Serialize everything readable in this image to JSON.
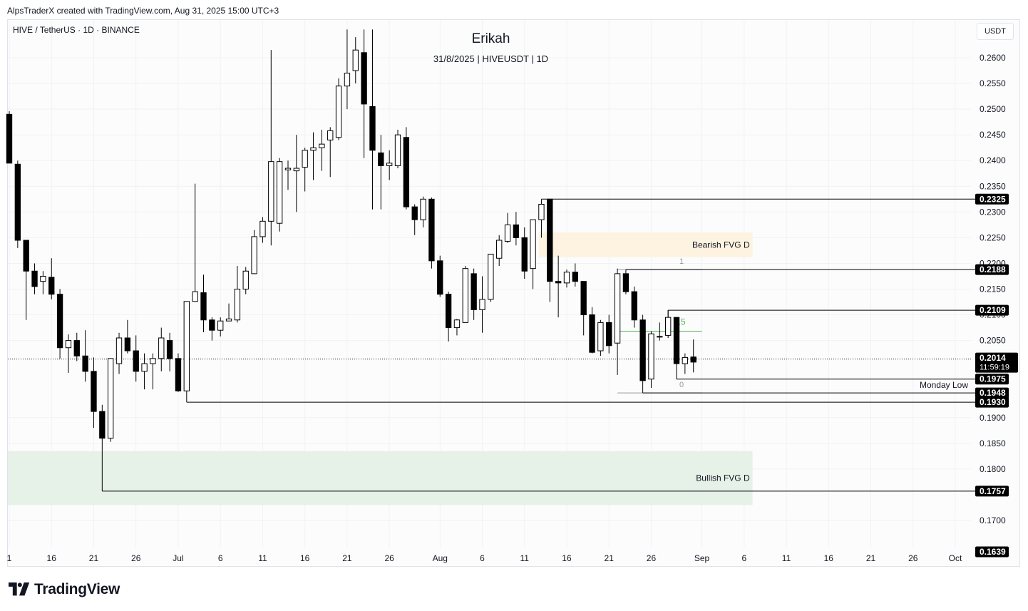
{
  "header": {
    "credit": "AlpsTraderX created with TradingView.com, Aug 31, 2025 15:00 UTC+3"
  },
  "symbol_line": "HIVE / TetherUS · 1D · BINANCE",
  "title": "Erikah",
  "subtitle": "31/8/2025 | HIVEUSDT | 1D",
  "currency_button": "USDT",
  "branding": {
    "logo_text": "TradingView",
    "logo_icon": "tradingview-logo-icon"
  },
  "colors": {
    "bullish_candle": "#ffffff",
    "bearish_candle": "#000000",
    "candle_border": "#000000",
    "bearish_fvg_zone": "#fdf3e0",
    "bullish_fvg_zone": "#e6f1e7",
    "fib_mid_line": "#4caf50",
    "level_line": "#000000",
    "price_label_bg": "#000000"
  },
  "chart_data": {
    "type": "candlestick",
    "interval": "1D",
    "y_axis": {
      "side": "right",
      "ticks": [
        0.26,
        0.255,
        0.25,
        0.245,
        0.24,
        0.235,
        0.23,
        0.225,
        0.22,
        0.215,
        0.21,
        0.205,
        0.19,
        0.185,
        0.18,
        0.17
      ],
      "tick_labels": [
        "0.2600",
        "0.2550",
        "0.2500",
        "0.2450",
        "0.2400",
        "0.2350",
        "0.2300",
        "0.2250",
        "0.2200",
        "0.2150",
        "0.2100",
        "0.2050",
        "0.1900",
        "0.1850",
        "0.1800",
        "0.1700"
      ],
      "range": [
        0.1625,
        0.2655
      ]
    },
    "x_axis": {
      "tick_labels": [
        "1",
        "16",
        "21",
        "26",
        "Jul",
        "6",
        "11",
        "16",
        "21",
        "26",
        "Aug",
        "6",
        "11",
        "16",
        "21",
        "26",
        "Sep",
        "6",
        "11",
        "16",
        "21",
        "26",
        "Oct"
      ],
      "tick_dates": [
        "2025-06-11",
        "2025-06-16",
        "2025-06-21",
        "2025-06-26",
        "2025-07-01",
        "2025-07-06",
        "2025-07-11",
        "2025-07-16",
        "2025-07-21",
        "2025-07-26",
        "2025-08-01",
        "2025-08-06",
        "2025-08-11",
        "2025-08-16",
        "2025-08-21",
        "2025-08-26",
        "2025-09-01",
        "2025-09-06",
        "2025-09-11",
        "2025-09-16",
        "2025-09-21",
        "2025-09-26",
        "2025-10-01"
      ],
      "range": [
        "2025-06-11",
        "2025-10-01"
      ]
    },
    "candles": [
      {
        "date": "2025-06-11",
        "o": 0.249,
        "h": 0.2496,
        "l": 0.2395,
        "c": 0.2395
      },
      {
        "date": "2025-06-12",
        "o": 0.2393,
        "h": 0.24,
        "l": 0.223,
        "c": 0.2245
      },
      {
        "date": "2025-06-13",
        "o": 0.2245,
        "h": 0.2245,
        "l": 0.209,
        "c": 0.2185
      },
      {
        "date": "2025-06-14",
        "o": 0.2185,
        "h": 0.22,
        "l": 0.214,
        "c": 0.2155
      },
      {
        "date": "2025-06-15",
        "o": 0.2165,
        "h": 0.2185,
        "l": 0.214,
        "c": 0.2175
      },
      {
        "date": "2025-06-16",
        "o": 0.2173,
        "h": 0.221,
        "l": 0.213,
        "c": 0.214
      },
      {
        "date": "2025-06-17",
        "o": 0.214,
        "h": 0.215,
        "l": 0.2015,
        "c": 0.2036
      },
      {
        "date": "2025-06-18",
        "o": 0.2036,
        "h": 0.2062,
        "l": 0.1987,
        "c": 0.205
      },
      {
        "date": "2025-06-19",
        "o": 0.205,
        "h": 0.2065,
        "l": 0.201,
        "c": 0.202
      },
      {
        "date": "2025-06-20",
        "o": 0.202,
        "h": 0.207,
        "l": 0.197,
        "c": 0.199
      },
      {
        "date": "2025-06-21",
        "o": 0.199,
        "h": 0.2017,
        "l": 0.188,
        "c": 0.1912
      },
      {
        "date": "2025-06-22",
        "o": 0.1912,
        "h": 0.1925,
        "l": 0.186,
        "c": 0.186
      },
      {
        "date": "2025-06-23",
        "o": 0.186,
        "h": 0.2015,
        "l": 0.1853,
        "c": 0.2015
      },
      {
        "date": "2025-06-24",
        "o": 0.2005,
        "h": 0.2065,
        "l": 0.1985,
        "c": 0.2055
      },
      {
        "date": "2025-06-25",
        "o": 0.2055,
        "h": 0.209,
        "l": 0.2025,
        "c": 0.203
      },
      {
        "date": "2025-06-26",
        "o": 0.203,
        "h": 0.206,
        "l": 0.197,
        "c": 0.199
      },
      {
        "date": "2025-06-27",
        "o": 0.199,
        "h": 0.2025,
        "l": 0.1955,
        "c": 0.2005
      },
      {
        "date": "2025-06-28",
        "o": 0.2005,
        "h": 0.2025,
        "l": 0.1955,
        "c": 0.2015
      },
      {
        "date": "2025-06-29",
        "o": 0.2015,
        "h": 0.2075,
        "l": 0.199,
        "c": 0.2055
      },
      {
        "date": "2025-06-30",
        "o": 0.205,
        "h": 0.2065,
        "l": 0.199,
        "c": 0.2015
      },
      {
        "date": "2025-07-01",
        "o": 0.2015,
        "h": 0.2025,
        "l": 0.195,
        "c": 0.1952
      },
      {
        "date": "2025-07-02",
        "o": 0.1952,
        "h": 0.2126,
        "l": 0.195,
        "c": 0.2126
      },
      {
        "date": "2025-07-03",
        "o": 0.2126,
        "h": 0.2355,
        "l": 0.2126,
        "c": 0.2145
      },
      {
        "date": "2025-07-04",
        "o": 0.2143,
        "h": 0.2178,
        "l": 0.2066,
        "c": 0.209
      },
      {
        "date": "2025-07-05",
        "o": 0.209,
        "h": 0.2095,
        "l": 0.205,
        "c": 0.207
      },
      {
        "date": "2025-07-06",
        "o": 0.207,
        "h": 0.2095,
        "l": 0.2058,
        "c": 0.2088
      },
      {
        "date": "2025-07-07",
        "o": 0.2088,
        "h": 0.2122,
        "l": 0.2088,
        "c": 0.2092
      },
      {
        "date": "2025-07-08",
        "o": 0.209,
        "h": 0.2195,
        "l": 0.2085,
        "c": 0.215
      },
      {
        "date": "2025-07-09",
        "o": 0.215,
        "h": 0.2193,
        "l": 0.214,
        "c": 0.2185
      },
      {
        "date": "2025-07-10",
        "o": 0.218,
        "h": 0.2265,
        "l": 0.218,
        "c": 0.2252
      },
      {
        "date": "2025-07-11",
        "o": 0.2252,
        "h": 0.229,
        "l": 0.224,
        "c": 0.2282
      },
      {
        "date": "2025-07-12",
        "o": 0.2282,
        "h": 0.2615,
        "l": 0.2235,
        "c": 0.2398
      },
      {
        "date": "2025-07-13",
        "o": 0.2278,
        "h": 0.2405,
        "l": 0.2262,
        "c": 0.2398
      },
      {
        "date": "2025-07-14",
        "o": 0.2382,
        "h": 0.24,
        "l": 0.2343,
        "c": 0.2385
      },
      {
        "date": "2025-07-15",
        "o": 0.238,
        "h": 0.245,
        "l": 0.23,
        "c": 0.2385
      },
      {
        "date": "2025-07-16",
        "o": 0.2387,
        "h": 0.2425,
        "l": 0.234,
        "c": 0.242
      },
      {
        "date": "2025-07-17",
        "o": 0.242,
        "h": 0.2455,
        "l": 0.2362,
        "c": 0.2425
      },
      {
        "date": "2025-07-18",
        "o": 0.2425,
        "h": 0.246,
        "l": 0.238,
        "c": 0.2432
      },
      {
        "date": "2025-07-19",
        "o": 0.244,
        "h": 0.2465,
        "l": 0.2368,
        "c": 0.2458
      },
      {
        "date": "2025-07-20",
        "o": 0.2445,
        "h": 0.256,
        "l": 0.244,
        "c": 0.2545
      },
      {
        "date": "2025-07-21",
        "o": 0.2545,
        "h": 0.2655,
        "l": 0.25,
        "c": 0.257
      },
      {
        "date": "2025-07-22",
        "o": 0.2575,
        "h": 0.264,
        "l": 0.255,
        "c": 0.2615
      },
      {
        "date": "2025-07-23",
        "o": 0.261,
        "h": 0.2655,
        "l": 0.2405,
        "c": 0.251
      },
      {
        "date": "2025-07-24",
        "o": 0.2505,
        "h": 0.2655,
        "l": 0.2305,
        "c": 0.242
      },
      {
        "date": "2025-07-25",
        "o": 0.2415,
        "h": 0.245,
        "l": 0.2305,
        "c": 0.239
      },
      {
        "date": "2025-07-26",
        "o": 0.239,
        "h": 0.242,
        "l": 0.2362,
        "c": 0.2395
      },
      {
        "date": "2025-07-27",
        "o": 0.239,
        "h": 0.246,
        "l": 0.2385,
        "c": 0.245
      },
      {
        "date": "2025-07-28",
        "o": 0.2445,
        "h": 0.2465,
        "l": 0.2305,
        "c": 0.231
      },
      {
        "date": "2025-07-29",
        "o": 0.231,
        "h": 0.2315,
        "l": 0.2255,
        "c": 0.2285
      },
      {
        "date": "2025-07-30",
        "o": 0.2285,
        "h": 0.233,
        "l": 0.227,
        "c": 0.2325
      },
      {
        "date": "2025-07-31",
        "o": 0.2325,
        "h": 0.2328,
        "l": 0.219,
        "c": 0.2205
      },
      {
        "date": "2025-08-01",
        "o": 0.2205,
        "h": 0.2215,
        "l": 0.2135,
        "c": 0.214
      },
      {
        "date": "2025-08-02",
        "o": 0.214,
        "h": 0.2145,
        "l": 0.2048,
        "c": 0.2075
      },
      {
        "date": "2025-08-03",
        "o": 0.2075,
        "h": 0.2092,
        "l": 0.206,
        "c": 0.209
      },
      {
        "date": "2025-08-04",
        "o": 0.2085,
        "h": 0.2195,
        "l": 0.2085,
        "c": 0.219
      },
      {
        "date": "2025-08-05",
        "o": 0.218,
        "h": 0.219,
        "l": 0.209,
        "c": 0.211
      },
      {
        "date": "2025-08-06",
        "o": 0.211,
        "h": 0.2175,
        "l": 0.2065,
        "c": 0.213
      },
      {
        "date": "2025-08-07",
        "o": 0.213,
        "h": 0.2218,
        "l": 0.2125,
        "c": 0.2218
      },
      {
        "date": "2025-08-08",
        "o": 0.221,
        "h": 0.2255,
        "l": 0.2195,
        "c": 0.2245
      },
      {
        "date": "2025-08-09",
        "o": 0.2243,
        "h": 0.2298,
        "l": 0.224,
        "c": 0.2275
      },
      {
        "date": "2025-08-10",
        "o": 0.2275,
        "h": 0.23,
        "l": 0.2235,
        "c": 0.225
      },
      {
        "date": "2025-08-11",
        "o": 0.225,
        "h": 0.227,
        "l": 0.217,
        "c": 0.2185
      },
      {
        "date": "2025-08-12",
        "o": 0.219,
        "h": 0.2285,
        "l": 0.215,
        "c": 0.2285
      },
      {
        "date": "2025-08-13",
        "o": 0.2285,
        "h": 0.2325,
        "l": 0.225,
        "c": 0.2315
      },
      {
        "date": "2025-08-14",
        "o": 0.2325,
        "h": 0.2325,
        "l": 0.2125,
        "c": 0.2165
      },
      {
        "date": "2025-08-15",
        "o": 0.2165,
        "h": 0.2215,
        "l": 0.2095,
        "c": 0.2162
      },
      {
        "date": "2025-08-16",
        "o": 0.2162,
        "h": 0.2188,
        "l": 0.2153,
        "c": 0.2183
      },
      {
        "date": "2025-08-17",
        "o": 0.2183,
        "h": 0.22,
        "l": 0.2155,
        "c": 0.2165
      },
      {
        "date": "2025-08-18",
        "o": 0.2165,
        "h": 0.2165,
        "l": 0.206,
        "c": 0.21
      },
      {
        "date": "2025-08-19",
        "o": 0.21,
        "h": 0.2115,
        "l": 0.2025,
        "c": 0.2027
      },
      {
        "date": "2025-08-20",
        "o": 0.203,
        "h": 0.209,
        "l": 0.202,
        "c": 0.2085
      },
      {
        "date": "2025-08-21",
        "o": 0.2085,
        "h": 0.21,
        "l": 0.2025,
        "c": 0.204
      },
      {
        "date": "2025-08-22",
        "o": 0.2045,
        "h": 0.219,
        "l": 0.1983,
        "c": 0.218
      },
      {
        "date": "2025-08-23",
        "o": 0.218,
        "h": 0.2188,
        "l": 0.214,
        "c": 0.2145
      },
      {
        "date": "2025-08-24",
        "o": 0.2145,
        "h": 0.2155,
        "l": 0.2075,
        "c": 0.209
      },
      {
        "date": "2025-08-25",
        "o": 0.209,
        "h": 0.21,
        "l": 0.1948,
        "c": 0.1972
      },
      {
        "date": "2025-08-26",
        "o": 0.1975,
        "h": 0.2068,
        "l": 0.1958,
        "c": 0.2063
      },
      {
        "date": "2025-08-27",
        "o": 0.2058,
        "h": 0.2085,
        "l": 0.205,
        "c": 0.2058
      },
      {
        "date": "2025-08-28",
        "o": 0.206,
        "h": 0.2109,
        "l": 0.2055,
        "c": 0.2095
      },
      {
        "date": "2025-08-29",
        "o": 0.2095,
        "h": 0.2095,
        "l": 0.1975,
        "c": 0.2005
      },
      {
        "date": "2025-08-30",
        "o": 0.2005,
        "h": 0.2025,
        "l": 0.1985,
        "c": 0.2017
      },
      {
        "date": "2025-08-31",
        "o": 0.2018,
        "h": 0.2052,
        "l": 0.1988,
        "c": 0.2008
      }
    ],
    "current_price": {
      "label": "0.2014",
      "value": 0.2014,
      "countdown": "11:59:19"
    },
    "levels": [
      {
        "label": "0.2325",
        "value": 0.2325,
        "from": "2025-08-13"
      },
      {
        "label": "0.2188",
        "value": 0.2188,
        "from": "2025-08-23"
      },
      {
        "label": "0.2109",
        "value": 0.2109,
        "from": "2025-08-28"
      },
      {
        "label": "0.1975",
        "value": 0.1975,
        "from": "2025-08-29"
      },
      {
        "label": "0.1948",
        "value": 0.1948,
        "from": "2025-08-25"
      },
      {
        "label": "0.1930",
        "value": 0.193,
        "from": "2025-07-02"
      },
      {
        "label": "0.1757",
        "value": 0.1757,
        "from": "2025-06-22"
      },
      {
        "label": "0.1639",
        "value": 0.1639,
        "from": null
      }
    ],
    "zones": [
      {
        "label": "Bearish FVG D",
        "top": 0.226,
        "bottom": 0.2212,
        "from": "2025-08-13",
        "to": "2025-09-07",
        "kind": "bearish"
      },
      {
        "label": "Bullish FVG D",
        "top": 0.1835,
        "bottom": 0.173,
        "from": "2025-06-11",
        "to": "2025-09-07",
        "kind": "bullish"
      }
    ],
    "annotations": {
      "monday_low": "Monday Low",
      "fib_1": "1",
      "fib_05": "0.5",
      "fib_0": "0"
    },
    "fib": {
      "from": "2025-08-22",
      "to": "2025-09-01",
      "top": 0.2188,
      "mid": 0.2068,
      "bottom": 0.1948
    }
  }
}
